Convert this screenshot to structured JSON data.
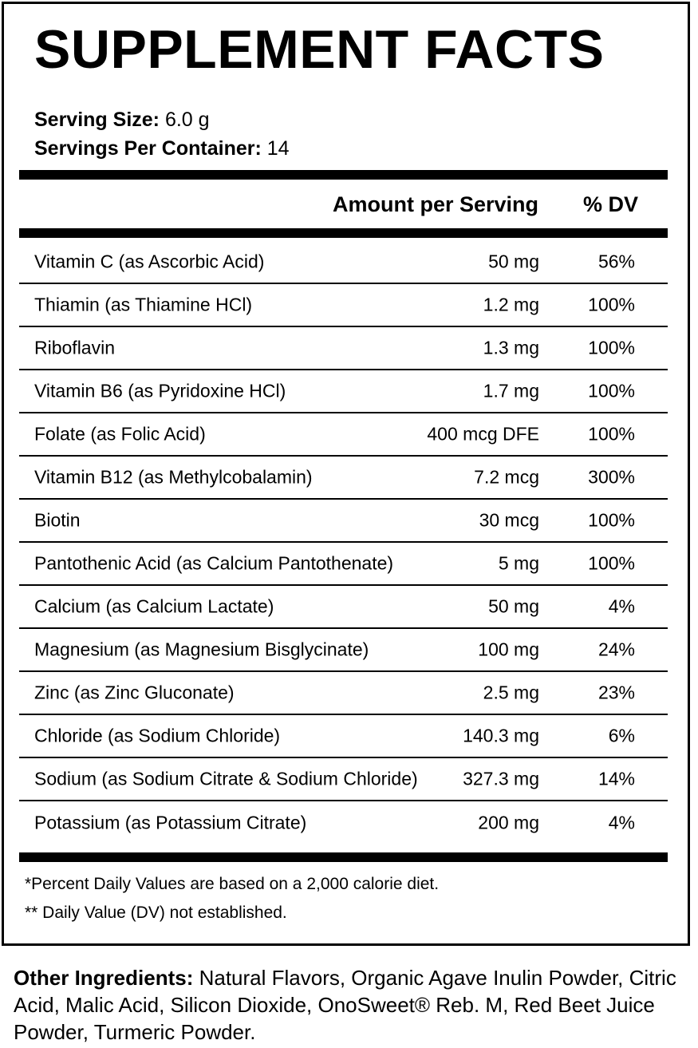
{
  "title": "SUPPLEMENT FACTS",
  "serving_size": {
    "label": "Serving Size:",
    "value": "6.0 g"
  },
  "servings_per_container": {
    "label": "Servings Per Container:",
    "value": "14"
  },
  "header": {
    "amount": "Amount per Serving",
    "dv": "% DV"
  },
  "rows": [
    {
      "name": "Vitamin C (as Ascorbic Acid)",
      "amount": "50 mg",
      "dv": "56%"
    },
    {
      "name": "Thiamin (as Thiamine HCl)",
      "amount": "1.2 mg",
      "dv": "100%"
    },
    {
      "name": "Riboflavin",
      "amount": "1.3 mg",
      "dv": "100%"
    },
    {
      "name": "Vitamin B6 (as Pyridoxine HCl)",
      "amount": "1.7 mg",
      "dv": "100%"
    },
    {
      "name": "Folate (as Folic Acid)",
      "amount": "400 mcg DFE",
      "dv": "100%"
    },
    {
      "name": "Vitamin B12 (as Methylcobalamin)",
      "amount": "7.2 mcg",
      "dv": "300%"
    },
    {
      "name": "Biotin",
      "amount": "30 mcg",
      "dv": "100%"
    },
    {
      "name": "Pantothenic Acid (as Calcium Pantothenate)",
      "amount": "5 mg",
      "dv": "100%"
    },
    {
      "name": "Calcium (as Calcium Lactate)",
      "amount": "50 mg",
      "dv": "4%"
    },
    {
      "name": "Magnesium (as Magnesium Bisglycinate)",
      "amount": "100 mg",
      "dv": "24%"
    },
    {
      "name": "Zinc (as Zinc Gluconate)",
      "amount": "2.5 mg",
      "dv": "23%"
    },
    {
      "name": "Chloride (as Sodium Chloride)",
      "amount": "140.3 mg",
      "dv": "6%"
    },
    {
      "name": "Sodium (as Sodium Citrate & Sodium Chloride)",
      "amount": "327.3 mg",
      "dv": "14%"
    },
    {
      "name": "Potassium (as Potassium Citrate)",
      "amount": "200 mg",
      "dv": "4%"
    }
  ],
  "footnotes": [
    "*Percent Daily Values are based on a 2,000 calorie diet.",
    "** Daily Value (DV) not established."
  ],
  "other_ingredients": {
    "label": "Other Ingredients:",
    "text": " Natural Flavors, Organic Agave Inulin Powder, Citric Acid, Malic Acid, Silicon Dioxide, OnoSweet® Reb. M, Red Beet Juice Powder, Turmeric Powder."
  }
}
